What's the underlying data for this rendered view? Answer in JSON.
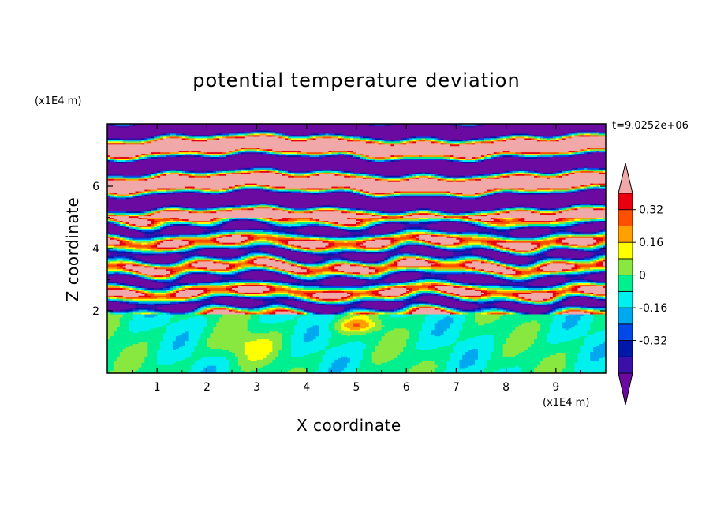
{
  "chart_data": {
    "type": "heatmap",
    "title": "potential temperature deviation",
    "xlabel": "X coordinate",
    "ylabel": "Z coordinate",
    "x_unit_label": "(x1E4 m)",
    "y_unit_label": "(x1E4 m)",
    "annotation": "t=9.0252e+06",
    "xlim": [
      0,
      10
    ],
    "ylim": [
      0,
      8
    ],
    "x_ticks": [
      "1",
      "2",
      "3",
      "4",
      "5",
      "6",
      "7",
      "8",
      "9"
    ],
    "y_ticks": [
      "2",
      "4",
      "6"
    ],
    "colorbar": {
      "levels": [
        -0.48,
        -0.4,
        -0.32,
        -0.24,
        -0.16,
        -0.08,
        0,
        0.08,
        0.16,
        0.24,
        0.32,
        0.4,
        0.48
      ],
      "colors": [
        "#6a0aa0",
        "#3a10a8",
        "#0018a8",
        "#0048e8",
        "#00a8f0",
        "#00f0f0",
        "#00f090",
        "#88e840",
        "#ffff00",
        "#ffa000",
        "#ff5000",
        "#e80010",
        "#f0a8a8"
      ],
      "extend": "both",
      "tick_labels": [
        "0.32",
        "0.16",
        "0",
        "-0.16",
        "-0.32"
      ],
      "tick_values": [
        0.32,
        0.16,
        0,
        -0.16,
        -0.32
      ]
    },
    "layers": [
      {
        "z_range": [
          0,
          1.9
        ],
        "pattern": "near-neutral, values about -0.05 to 0.1, warm patch near x=5, z=1.5"
      },
      {
        "z_range": [
          1.9,
          5.0
        ],
        "pattern": "thin interleaved layers, values spanning -0.48 to 0.48"
      },
      {
        "z_range": [
          5.0,
          8.0
        ],
        "pattern": "alternating saturated bands, values beyond +0.48 and below -0.48"
      }
    ]
  }
}
